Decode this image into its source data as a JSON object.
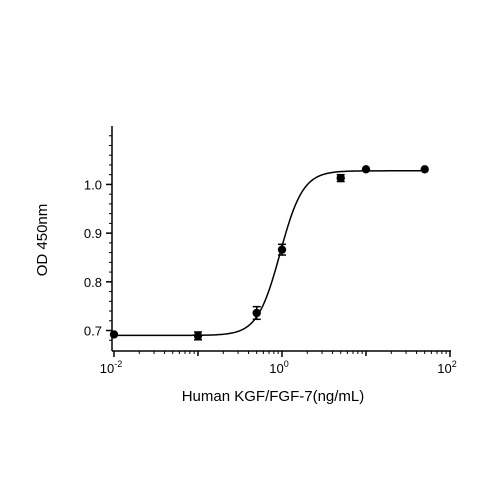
{
  "chart_data": {
    "type": "scatter",
    "xlabel": "Human KGF/FGF-7(ng/mL)",
    "ylabel": "OD 450nm",
    "x_scale": "log",
    "xlim": [
      0.01,
      100
    ],
    "ylim": [
      0.66,
      1.12
    ],
    "x_ticks": [
      {
        "base": "10",
        "exp": "-2",
        "value": 0.01
      },
      {
        "base": "10",
        "exp": "0",
        "value": 1
      },
      {
        "base": "10",
        "exp": "2",
        "value": 100
      }
    ],
    "y_ticks": [
      {
        "label": "0.7",
        "value": 0.7
      },
      {
        "label": "0.8",
        "value": 0.8
      },
      {
        "label": "0.9",
        "value": 0.9
      },
      {
        "label": "1.0",
        "value": 1.0
      }
    ],
    "points": [
      {
        "x": 0.01,
        "y": 0.692,
        "err": 0
      },
      {
        "x": 0.1,
        "y": 0.689,
        "err": 0.008
      },
      {
        "x": 0.5,
        "y": 0.736,
        "err": 0.013
      },
      {
        "x": 1.0,
        "y": 0.866,
        "err": 0.011
      },
      {
        "x": 5.0,
        "y": 1.013,
        "err": 0.007
      },
      {
        "x": 10.0,
        "y": 1.031,
        "err": 0
      },
      {
        "x": 50.0,
        "y": 1.031,
        "err": 0
      }
    ],
    "fit": {
      "model": "4PL",
      "bottom": 0.69,
      "top": 1.028,
      "ec50": 0.95,
      "hill": 3.2
    },
    "grid": false,
    "legend": "none"
  }
}
